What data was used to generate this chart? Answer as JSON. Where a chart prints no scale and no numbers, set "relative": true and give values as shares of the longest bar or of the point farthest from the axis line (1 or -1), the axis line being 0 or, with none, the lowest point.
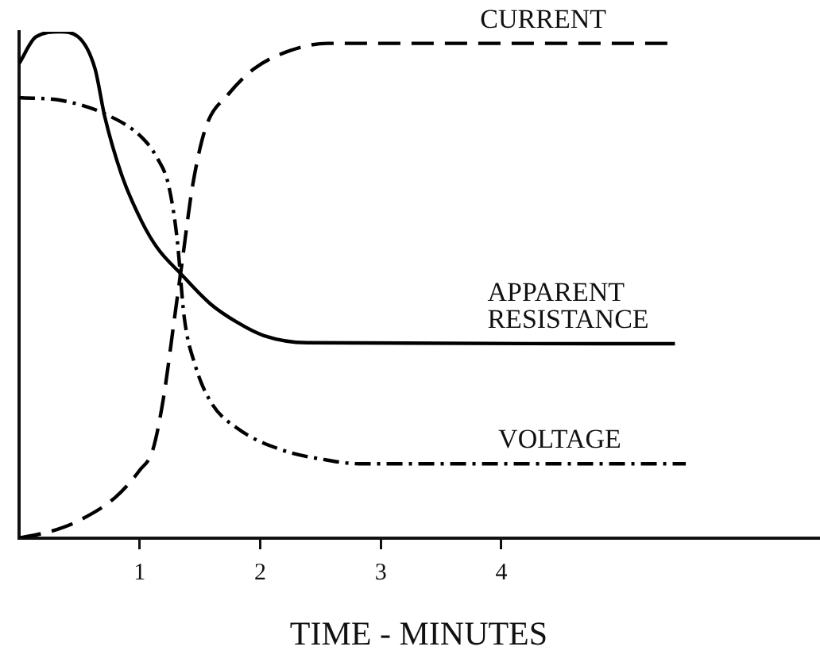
{
  "chart_data": {
    "type": "line",
    "xlabel": "TIME - MINUTES",
    "relative": true,
    "xlim": [
      0,
      6.63
    ],
    "xticks": [
      1,
      2,
      3,
      4
    ],
    "grid": false,
    "legend": false,
    "marker": "none",
    "tick_labels": "x",
    "series": [
      {
        "name": "CURRENT",
        "color": "#000000",
        "line_style": "dashed",
        "x": [
          0,
          0.27,
          0.49,
          0.8,
          1.0,
          1.11,
          1.2,
          1.29,
          1.35,
          1.44,
          1.55,
          1.73,
          1.95,
          2.25,
          2.56,
          2.91,
          5.38
        ],
        "values": [
          0,
          0.014,
          0.034,
          0.081,
          0.134,
          0.175,
          0.28,
          0.436,
          0.541,
          0.697,
          0.812,
          0.875,
          0.927,
          0.963,
          0.977,
          0.977,
          0.977
        ]
      },
      {
        "name": "APPARENT RESISTANCE",
        "color": "#000000",
        "line_style": "solid",
        "x": [
          0,
          0.14,
          0.34,
          0.49,
          0.63,
          0.71,
          0.85,
          1.02,
          1.15,
          1.35,
          1.59,
          1.81,
          2.03,
          2.39,
          5.44
        ],
        "values": [
          0.937,
          0.99,
          1.0,
          0.99,
          0.927,
          0.833,
          0.718,
          0.624,
          0.572,
          0.52,
          0.462,
          0.426,
          0.4,
          0.386,
          0.384
        ]
      },
      {
        "name": "VOLTAGE",
        "color": "#000000",
        "line_style": "dashdot",
        "x": [
          0,
          0.36,
          0.71,
          1.02,
          1.15,
          1.24,
          1.31,
          1.37,
          1.46,
          1.59,
          1.81,
          2.17,
          2.56,
          2.82,
          5.53
        ],
        "values": [
          0.87,
          0.864,
          0.838,
          0.791,
          0.749,
          0.697,
          0.593,
          0.436,
          0.342,
          0.269,
          0.217,
          0.175,
          0.154,
          0.147,
          0.147
        ]
      }
    ]
  }
}
